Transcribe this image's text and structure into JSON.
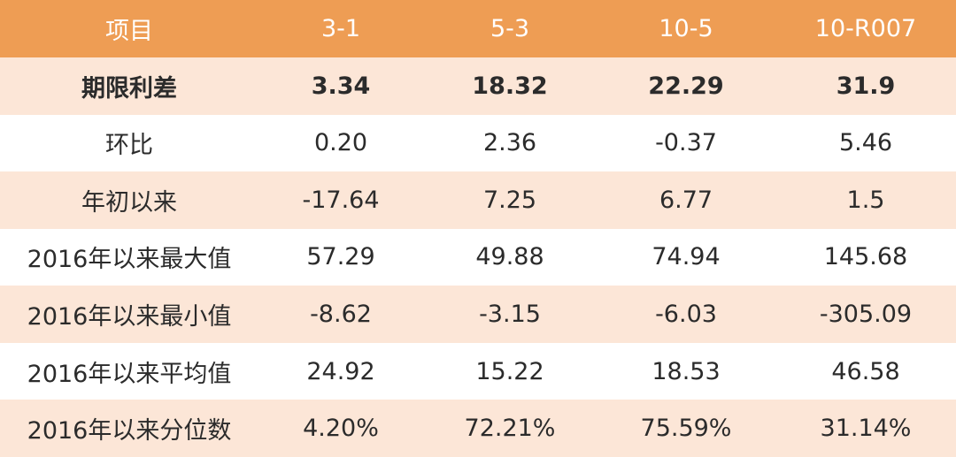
{
  "chart_data": {
    "type": "table",
    "columns": [
      "项目",
      "3-1",
      "5-3",
      "10-5",
      "10-R007"
    ],
    "rows": [
      {
        "label": "期限利差",
        "values": [
          "3.34",
          "18.32",
          "22.29",
          "31.9"
        ],
        "bold": true
      },
      {
        "label": "环比",
        "values": [
          "0.20",
          "2.36",
          "-0.37",
          "5.46"
        ],
        "bold": false
      },
      {
        "label": "年初以来",
        "values": [
          "-17.64",
          "7.25",
          "6.77",
          "1.5"
        ],
        "bold": false
      },
      {
        "label": "2016年以来最大值",
        "values": [
          "57.29",
          "49.88",
          "74.94",
          "145.68"
        ],
        "bold": false
      },
      {
        "label": "2016年以来最小值",
        "values": [
          "-8.62",
          "-3.15",
          "-6.03",
          "-305.09"
        ],
        "bold": false
      },
      {
        "label": "2016年以来平均值",
        "values": [
          "24.92",
          "15.22",
          "18.53",
          "46.58"
        ],
        "bold": false
      },
      {
        "label": "2016年以来分位数",
        "values": [
          "4.20%",
          "72.21%",
          "75.59%",
          "31.14%"
        ],
        "bold": false
      }
    ]
  },
  "colors": {
    "header_bg": "#ee9d54",
    "stripe_bg": "#fce6d7",
    "plain_bg": "#ffffff"
  }
}
